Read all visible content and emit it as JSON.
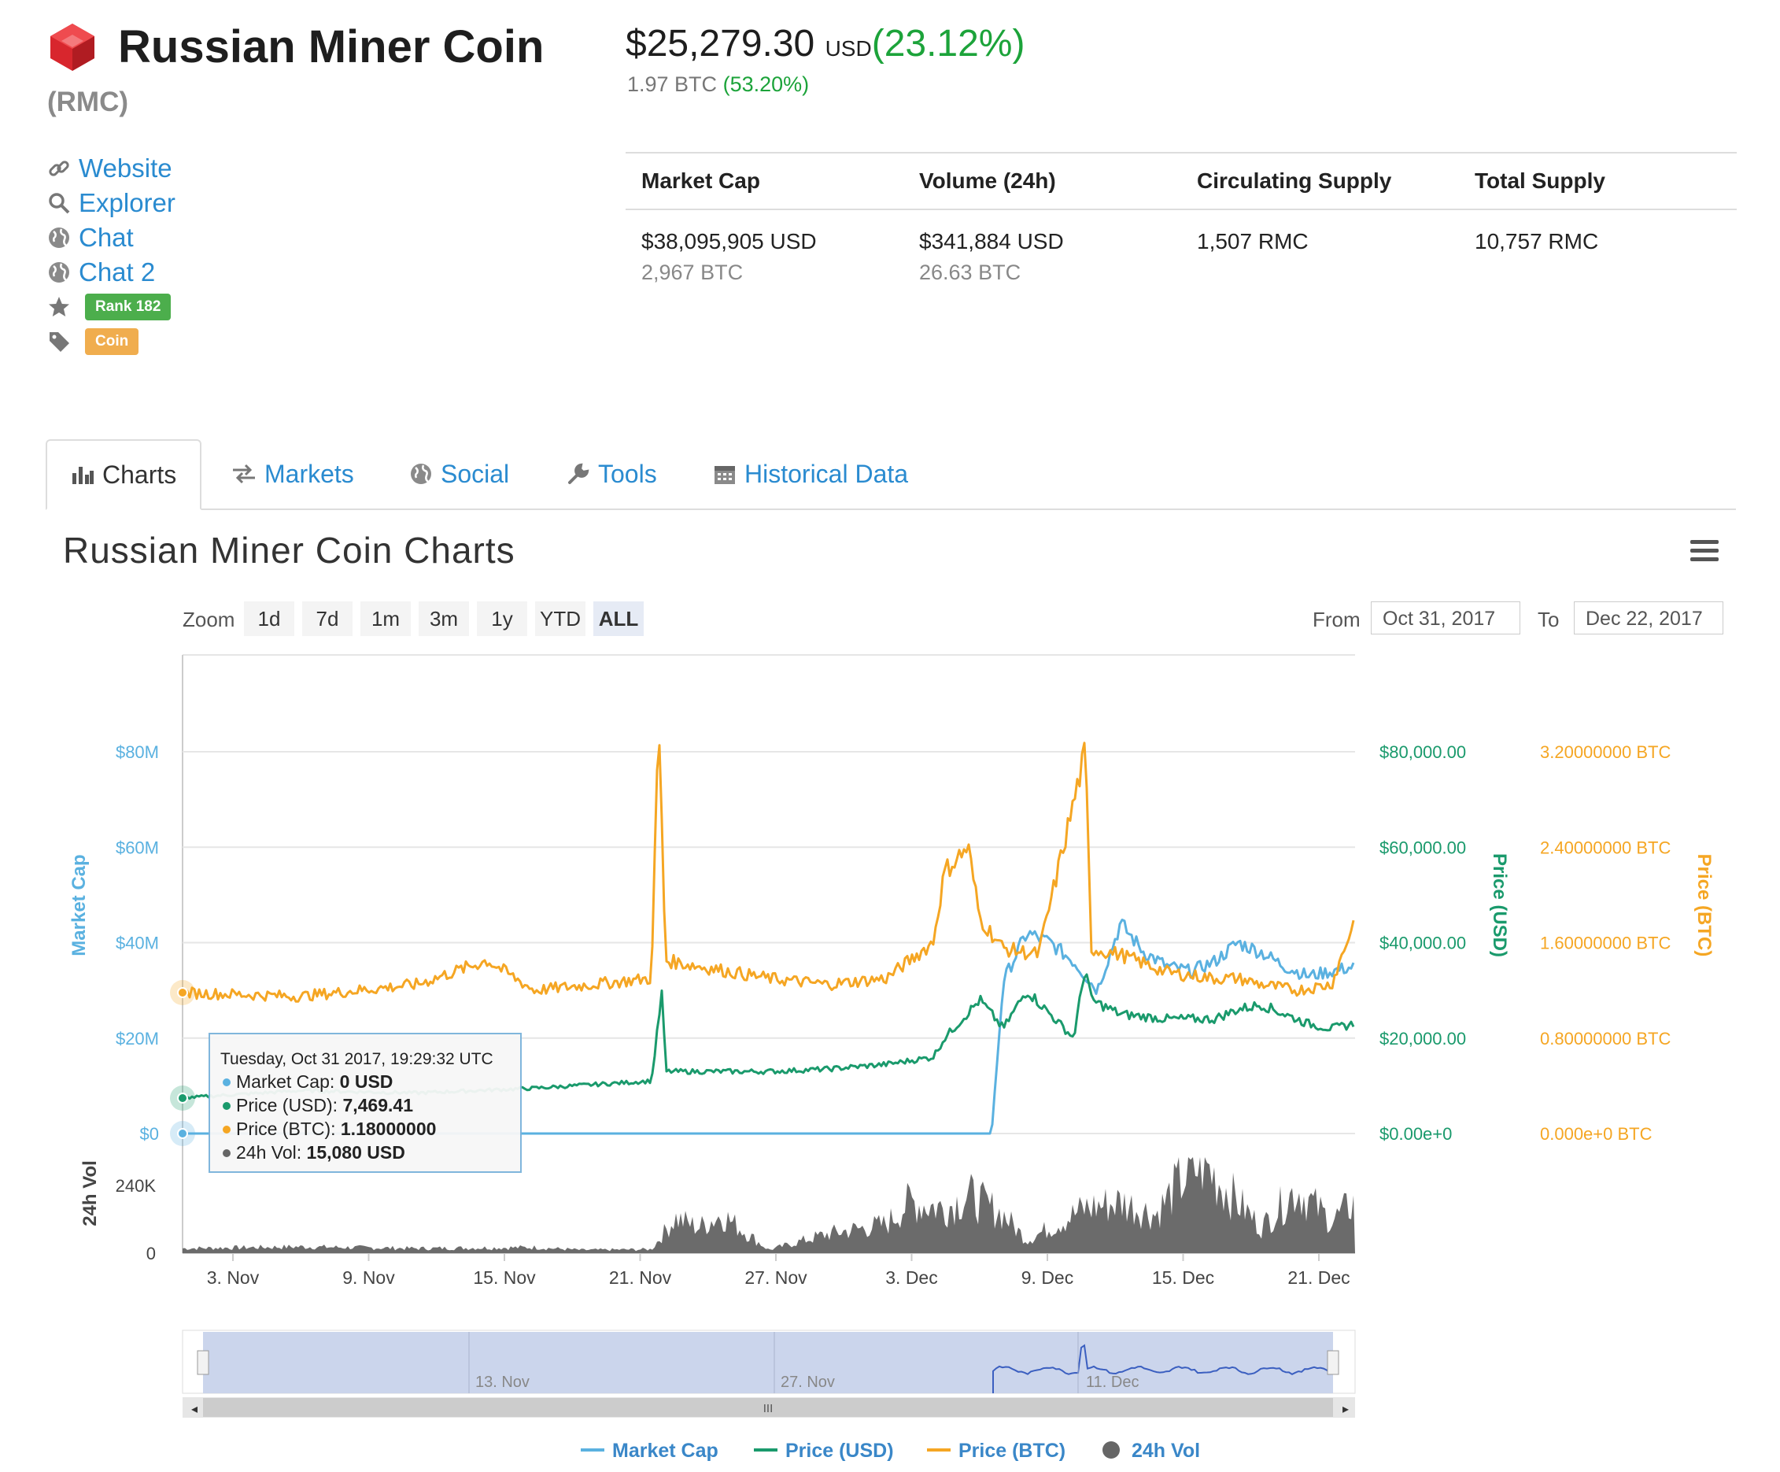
{
  "coin": {
    "name": "Russian Miner Coin",
    "symbol": "(RMC)",
    "price_usd": "$25,279.30",
    "price_usd_currency": "USD",
    "price_usd_change": "(23.12%)",
    "price_btc": "1.97 BTC",
    "price_btc_change": "(53.20%)"
  },
  "links": [
    {
      "icon": "link-icon",
      "label": "Website"
    },
    {
      "icon": "search-icon",
      "label": "Explorer"
    },
    {
      "icon": "globe-icon",
      "label": "Chat"
    },
    {
      "icon": "globe-icon",
      "label": "Chat 2"
    }
  ],
  "badges": {
    "rank": "Rank 182",
    "rank_icon": "star-icon",
    "rank_color": "#4cae4c",
    "type": "Coin",
    "type_icon": "tag-icon",
    "type_color": "#f0ad4e"
  },
  "stats": {
    "headers": [
      "Market Cap",
      "Volume (24h)",
      "Circulating Supply",
      "Total Supply"
    ],
    "values": [
      {
        "primary": "$38,095,905 USD",
        "secondary": "2,967 BTC"
      },
      {
        "primary": "$341,884 USD",
        "secondary": "26.63 BTC"
      },
      {
        "primary": "1,507 RMC",
        "secondary": ""
      },
      {
        "primary": "10,757 RMC",
        "secondary": ""
      }
    ]
  },
  "tabs": [
    {
      "label": "Charts",
      "icon": "bar-chart-icon",
      "active": true
    },
    {
      "label": "Markets",
      "icon": "exchange-icon"
    },
    {
      "label": "Social",
      "icon": "globe-icon"
    },
    {
      "label": "Tools",
      "icon": "wrench-icon"
    },
    {
      "label": "Historical Data",
      "icon": "calendar-icon"
    }
  ],
  "chart_section": {
    "title": "Russian Miner Coin Charts",
    "zoom_label": "Zoom",
    "zoom_options": [
      "1d",
      "7d",
      "1m",
      "3m",
      "1y",
      "YTD",
      "ALL"
    ],
    "zoom_selected": "ALL",
    "from_label": "From",
    "from_value": "Oct 31, 2017",
    "to_label": "To",
    "to_value": "Dec 22, 2017",
    "tooltip": {
      "date": "Tuesday, Oct 31 2017, 19:29:32 UTC",
      "rows": [
        {
          "label": "Market Cap: ",
          "value": "0 USD",
          "color": "#5ab1e0"
        },
        {
          "label": "Price (USD): ",
          "value": "7,469.41",
          "color": "#1a9a6c"
        },
        {
          "label": "Price (BTC): ",
          "value": "1.18000000",
          "color": "#f5a623"
        },
        {
          "label": "24h Vol: ",
          "value": "15,080 USD",
          "color": "#666666"
        }
      ]
    },
    "navigator_labels": [
      "13. Nov",
      "27. Nov",
      "11. Dec"
    ]
  },
  "chart_data": {
    "type": "line",
    "xlabel": "",
    "x_ticks": [
      "3. Nov",
      "9. Nov",
      "15. Nov",
      "21. Nov",
      "27. Nov",
      "3. Dec",
      "9. Dec",
      "15. Dec",
      "21. Dec"
    ],
    "x_range": [
      "2017-10-31",
      "2017-12-22"
    ],
    "axes": {
      "market_cap": {
        "label": "Market Cap",
        "ticks": [
          "$0",
          "$20M",
          "$40M",
          "$60M",
          "$80M"
        ],
        "range": [
          0,
          80000000
        ],
        "color": "#5ab1e0"
      },
      "price_usd": {
        "label": "Price (USD)",
        "ticks": [
          "$0.00e+0",
          "$20,000.00",
          "$40,000.00",
          "$60,000.00",
          "$80,000.00"
        ],
        "range": [
          0,
          80000
        ],
        "color": "#1a9a6c"
      },
      "price_btc": {
        "label": "Price (BTC)",
        "ticks": [
          "0.000e+0 BTC",
          "0.80000000 BTC",
          "1.60000000 BTC",
          "2.40000000 BTC",
          "3.20000000 BTC"
        ],
        "range": [
          0,
          3.2
        ],
        "color": "#f5a623"
      },
      "volume": {
        "label": "24h Vol",
        "ticks": [
          "0",
          "240K"
        ],
        "color": "#666666"
      }
    },
    "series": [
      {
        "name": "Market Cap",
        "color": "#5ab1e0",
        "x": [
          0,
          0.1,
          0.2,
          0.3,
          0.4,
          0.5,
          0.6,
          0.69,
          0.7,
          0.72,
          0.74,
          0.76,
          0.78,
          0.8,
          0.82,
          0.84,
          0.86,
          0.88,
          0.9,
          0.92,
          0.94,
          0.96,
          0.98,
          1.0
        ],
        "values": [
          0,
          0,
          0,
          0,
          0,
          0,
          0,
          0,
          32000000,
          42000000,
          40000000,
          36000000,
          30000000,
          44000000,
          38000000,
          35000000,
          34000000,
          36000000,
          40000000,
          38000000,
          35000000,
          33000000,
          34000000,
          35000000
        ]
      },
      {
        "name": "Price (USD)",
        "color": "#1a9a6c",
        "x": [
          0,
          0.1,
          0.2,
          0.3,
          0.4,
          0.409,
          0.412,
          0.5,
          0.55,
          0.6,
          0.64,
          0.65,
          0.68,
          0.7,
          0.72,
          0.74,
          0.76,
          0.77,
          0.775,
          0.8,
          0.84,
          0.88,
          0.9,
          0.92,
          0.94,
          0.96,
          0.98,
          1.0
        ],
        "values": [
          7469,
          9000,
          8500,
          9500,
          11000,
          30000,
          13000,
          13000,
          13500,
          14500,
          16000,
          20000,
          28000,
          22000,
          30000,
          25000,
          20000,
          35000,
          28000,
          25000,
          24000,
          24000,
          26000,
          27000,
          25000,
          23000,
          22000,
          23000
        ]
      },
      {
        "name": "Price (BTC)",
        "color": "#f5a623",
        "x": [
          0,
          0.1,
          0.2,
          0.26,
          0.3,
          0.4,
          0.406,
          0.412,
          0.5,
          0.55,
          0.6,
          0.64,
          0.65,
          0.67,
          0.68,
          0.7,
          0.73,
          0.77,
          0.775,
          0.8,
          0.84,
          0.88,
          0.9,
          0.92,
          0.95,
          0.98,
          1.0
        ],
        "values": [
          1.18,
          1.15,
          1.25,
          1.45,
          1.2,
          1.3,
          3.5,
          1.45,
          1.3,
          1.25,
          1.3,
          1.6,
          2.2,
          2.4,
          1.8,
          1.55,
          1.5,
          3.2,
          1.55,
          1.5,
          1.35,
          1.3,
          1.3,
          1.25,
          1.2,
          1.25,
          1.8
        ]
      },
      {
        "name": "24h Vol",
        "color": "#666666",
        "x": [
          0,
          0.1,
          0.2,
          0.3,
          0.34,
          0.4,
          0.42,
          0.44,
          0.46,
          0.5,
          0.55,
          0.6,
          0.62,
          0.65,
          0.67,
          0.7,
          0.72,
          0.75,
          0.77,
          0.8,
          0.83,
          0.85,
          0.87,
          0.9,
          0.92,
          0.95,
          0.98,
          1.0
        ],
        "values": [
          15080,
          20000,
          15000,
          18000,
          10000,
          12000,
          110000,
          80000,
          120000,
          10000,
          60000,
          90000,
          160000,
          140000,
          180000,
          120000,
          40000,
          100000,
          140000,
          160000,
          120000,
          220000,
          280000,
          160000,
          80000,
          200000,
          100000,
          160000
        ]
      }
    ],
    "legend": [
      "Market Cap",
      "Price (USD)",
      "Price (BTC)",
      "24h Vol"
    ],
    "legend_position": "bottom",
    "grid": true
  }
}
